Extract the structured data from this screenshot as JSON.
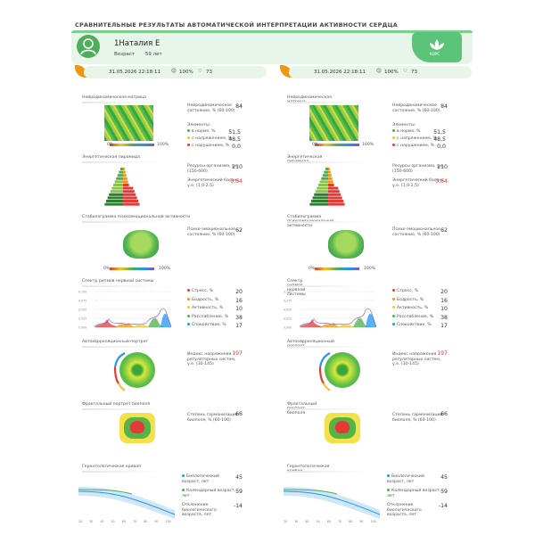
{
  "title": "СРАВНИТЕЛЬНЫЕ РЕЗУЛЬТАТЫ АВТОМАТИЧЕСКОЙ ИНТЕРПРЕТАЦИИ АКТИВНОСТИ СЕРДЦА",
  "patient": {
    "name": "1Наталия Е",
    "age_label": "Возраст",
    "age_value": "59 лет"
  },
  "logo": {
    "text": "КОРС"
  },
  "colors": {
    "accent": "#5cc47a",
    "header_bg": "#e8f6ea",
    "warn": "#e53935",
    "leaf": "#f0960f"
  },
  "sessions": [
    {
      "date": "31.05.2026 22:18:11",
      "quality": "100%",
      "hr": "73"
    },
    {
      "date": "31.05.2026 22:18:11",
      "quality": "100%",
      "hr": "73"
    }
  ],
  "columns": [
    {
      "sections": {
        "matrix": "Нейродинамическая матрица",
        "pyramid": "Энергетическая пирамида",
        "brain": "Стабилограмма психоэмоциональной активности",
        "spectrum": "Спектр ритмов нервной системы",
        "autoregulation": "Автокорреляционный портрет",
        "biofield": "Фрактальный портрет биополя",
        "geron": "Геронтологическая кривая"
      },
      "matrix": {
        "index_label": "Нейродинамическое состояние, % (60-100)",
        "index_value": "84",
        "elements_label": "Элементы:",
        "items": [
          {
            "label": "в норме, %",
            "value": "51,5",
            "color": "#4caf50"
          },
          {
            "label": "с напряжением, %",
            "value": "48,5",
            "color": "#f3c623"
          },
          {
            "label": "с нарушением, %",
            "value": "0,0",
            "color": "#e53935"
          }
        ],
        "scale_min": "0%",
        "scale_max": "100%"
      },
      "pyramid": {
        "res_label": "Ресурсы организма, у.е. (150-600)",
        "res_value": "210",
        "bal_label": "Энергетический баланс, у.е. (1,0-2,5)",
        "bal_value": "0,64"
      },
      "brain": {
        "label": "Психо-эмоциональное состояние, % (60-100)",
        "value": "62",
        "scale_min": "0%",
        "scale_max": "100%"
      },
      "spectrum": {
        "y_ticks": [
          "0,100",
          "0,075",
          "0,050",
          "0,025",
          "0,000"
        ],
        "items": [
          {
            "label": "Стресс, %",
            "value": "20",
            "color": "#e53935"
          },
          {
            "label": "Бодрость, %",
            "value": "16",
            "color": "#f0960f"
          },
          {
            "label": "Активность, %",
            "value": "10",
            "color": "#f3c623"
          },
          {
            "label": "Расслабление, %",
            "value": "38",
            "color": "#4caf50"
          },
          {
            "label": "Спокойствие, %",
            "value": "17",
            "color": "#2196f3"
          }
        ]
      },
      "autoregulation": {
        "label": "Индекс напряжения регуляторных систем, у.е. (30-145)",
        "value": "197"
      },
      "biofield": {
        "label": "Степень гармонизации биополя, % (60-100)",
        "value": "66"
      },
      "geron": {
        "items": [
          {
            "label": "Биологический возраст, лет",
            "value": "45",
            "color": "#2196f3"
          },
          {
            "label": "Календарный возраст, лет",
            "value": "59",
            "color": "#4caf50"
          },
          {
            "label": "Отклонение биологического возраста, лет",
            "value": "-14",
            "color": ""
          }
        ],
        "x_ticks": [
          "20",
          "30",
          "40",
          "50",
          "60",
          "70",
          "80",
          "90",
          "100"
        ]
      }
    },
    {
      "sections": {
        "matrix": "Нейродинамическая матрица",
        "pyramid": "Энергетическая пирамида",
        "brain": "Стабилограмма психоэмоциональной активности",
        "spectrum": "Спектр ритмов нервной системы",
        "autoregulation": "Автокорреляционный портрет",
        "biofield": "Фрактальный портрет биополя",
        "geron": "Геронтологическая кривая"
      },
      "matrix": {
        "index_label": "Нейродинамическое состояние, % (60-100)",
        "index_value": "84",
        "elements_label": "Элементы:",
        "items": [
          {
            "label": "в норме, %",
            "value": "51,5",
            "color": "#4caf50"
          },
          {
            "label": "с напряжением, %",
            "value": "48,5",
            "color": "#f3c623"
          },
          {
            "label": "с нарушением, %",
            "value": "0,0",
            "color": "#e53935"
          }
        ],
        "scale_min": "0%",
        "scale_max": "100%"
      },
      "pyramid": {
        "res_label": "Ресурсы организма, у.е. (150-600)",
        "res_value": "210",
        "bal_label": "Энергетический баланс, у.е. (1,0-2,5)",
        "bal_value": "0,64"
      },
      "brain": {
        "label": "Психо-эмоциональное состояние, % (60-100)",
        "value": "62",
        "scale_min": "0%",
        "scale_max": "100%"
      },
      "spectrum": {
        "y_ticks": [
          "0,100",
          "0,075",
          "0,050",
          "0,025",
          "0,000"
        ],
        "items": [
          {
            "label": "Стресс, %",
            "value": "20",
            "color": "#e53935"
          },
          {
            "label": "Бодрость, %",
            "value": "16",
            "color": "#f0960f"
          },
          {
            "label": "Активность, %",
            "value": "10",
            "color": "#f3c623"
          },
          {
            "label": "Расслабление, %",
            "value": "38",
            "color": "#4caf50"
          },
          {
            "label": "Спокойствие, %",
            "value": "17",
            "color": "#2196f3"
          }
        ]
      },
      "autoregulation": {
        "label": "Индекс напряжения регуляторных систем, у.е. (30-145)",
        "value": "197"
      },
      "biofield": {
        "label": "Степень гармонизации биополя, % (60-100)",
        "value": "66"
      },
      "geron": {
        "items": [
          {
            "label": "Биологический возраст, лет",
            "value": "45",
            "color": "#2196f3"
          },
          {
            "label": "Календарный возраст, лет",
            "value": "59",
            "color": "#4caf50"
          },
          {
            "label": "Отклонение биологического возраста, лет",
            "value": "-14",
            "color": ""
          }
        ],
        "x_ticks": [
          "20",
          "30",
          "40",
          "50",
          "60",
          "70",
          "80",
          "90",
          "100"
        ]
      }
    }
  ]
}
